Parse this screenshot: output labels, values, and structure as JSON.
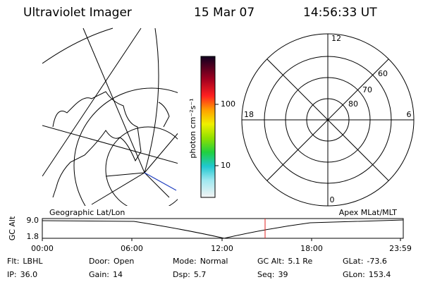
{
  "header": {
    "title": "Ultraviolet Imager",
    "date": "15 Mar 07",
    "time": "14:56:33 UT"
  },
  "colorbar": {
    "label": "photon cm⁻²s⁻¹",
    "ticks": [
      "100",
      "10"
    ]
  },
  "polar": {
    "mlt_labels": [
      "12",
      "6",
      "0",
      "18"
    ],
    "lat_labels": [
      "60",
      "70",
      "80"
    ]
  },
  "timeline": {
    "left_title": "Geographic Lat/Lon",
    "right_title": "Apex MLat/MLT",
    "y_label": "GC Alt",
    "y_ticks": [
      "9.0",
      "1.8"
    ],
    "x_ticks": [
      "00:00",
      "06:00",
      "12:00",
      "18:00",
      "23:59"
    ]
  },
  "info": [
    {
      "label": "Flt:",
      "value": "LBHL"
    },
    {
      "label": "IP:",
      "value": "36.0"
    },
    {
      "label": "Door:",
      "value": "Open"
    },
    {
      "label": "Gain:",
      "value": "14"
    },
    {
      "label": "Mode:",
      "value": "Normal"
    },
    {
      "label": "Dsp:",
      "value": "5.7"
    },
    {
      "label": "GC Alt:",
      "value": "5.1 Re"
    },
    {
      "label": "Seq:",
      "value": "39"
    },
    {
      "label": "GLat:",
      "value": "-73.6"
    },
    {
      "label": "GLon:",
      "value": "153.4"
    }
  ]
}
